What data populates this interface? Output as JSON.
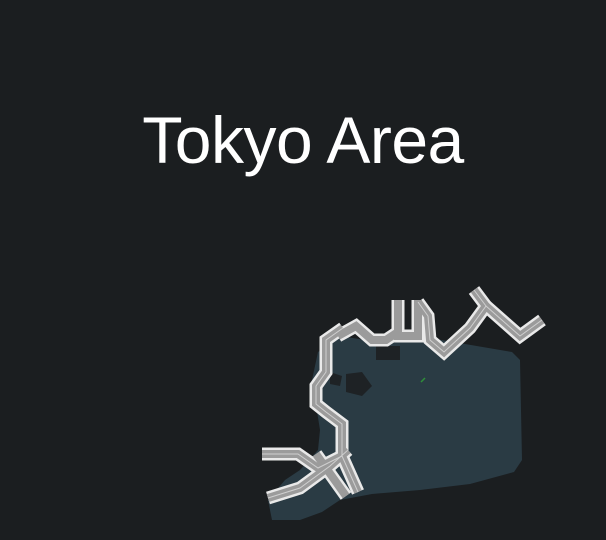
{
  "title": "Tokyo Area",
  "colors": {
    "background": "#1b1e20",
    "water": "#2a3b44",
    "road_fill": "#9b9b9b",
    "road_outline": "#e9e9e9",
    "land_shadow": "#1e2225",
    "marker": "#2f8f3a"
  },
  "map": {
    "icons": [
      "road-network",
      "bay-water",
      "green-marker"
    ]
  }
}
